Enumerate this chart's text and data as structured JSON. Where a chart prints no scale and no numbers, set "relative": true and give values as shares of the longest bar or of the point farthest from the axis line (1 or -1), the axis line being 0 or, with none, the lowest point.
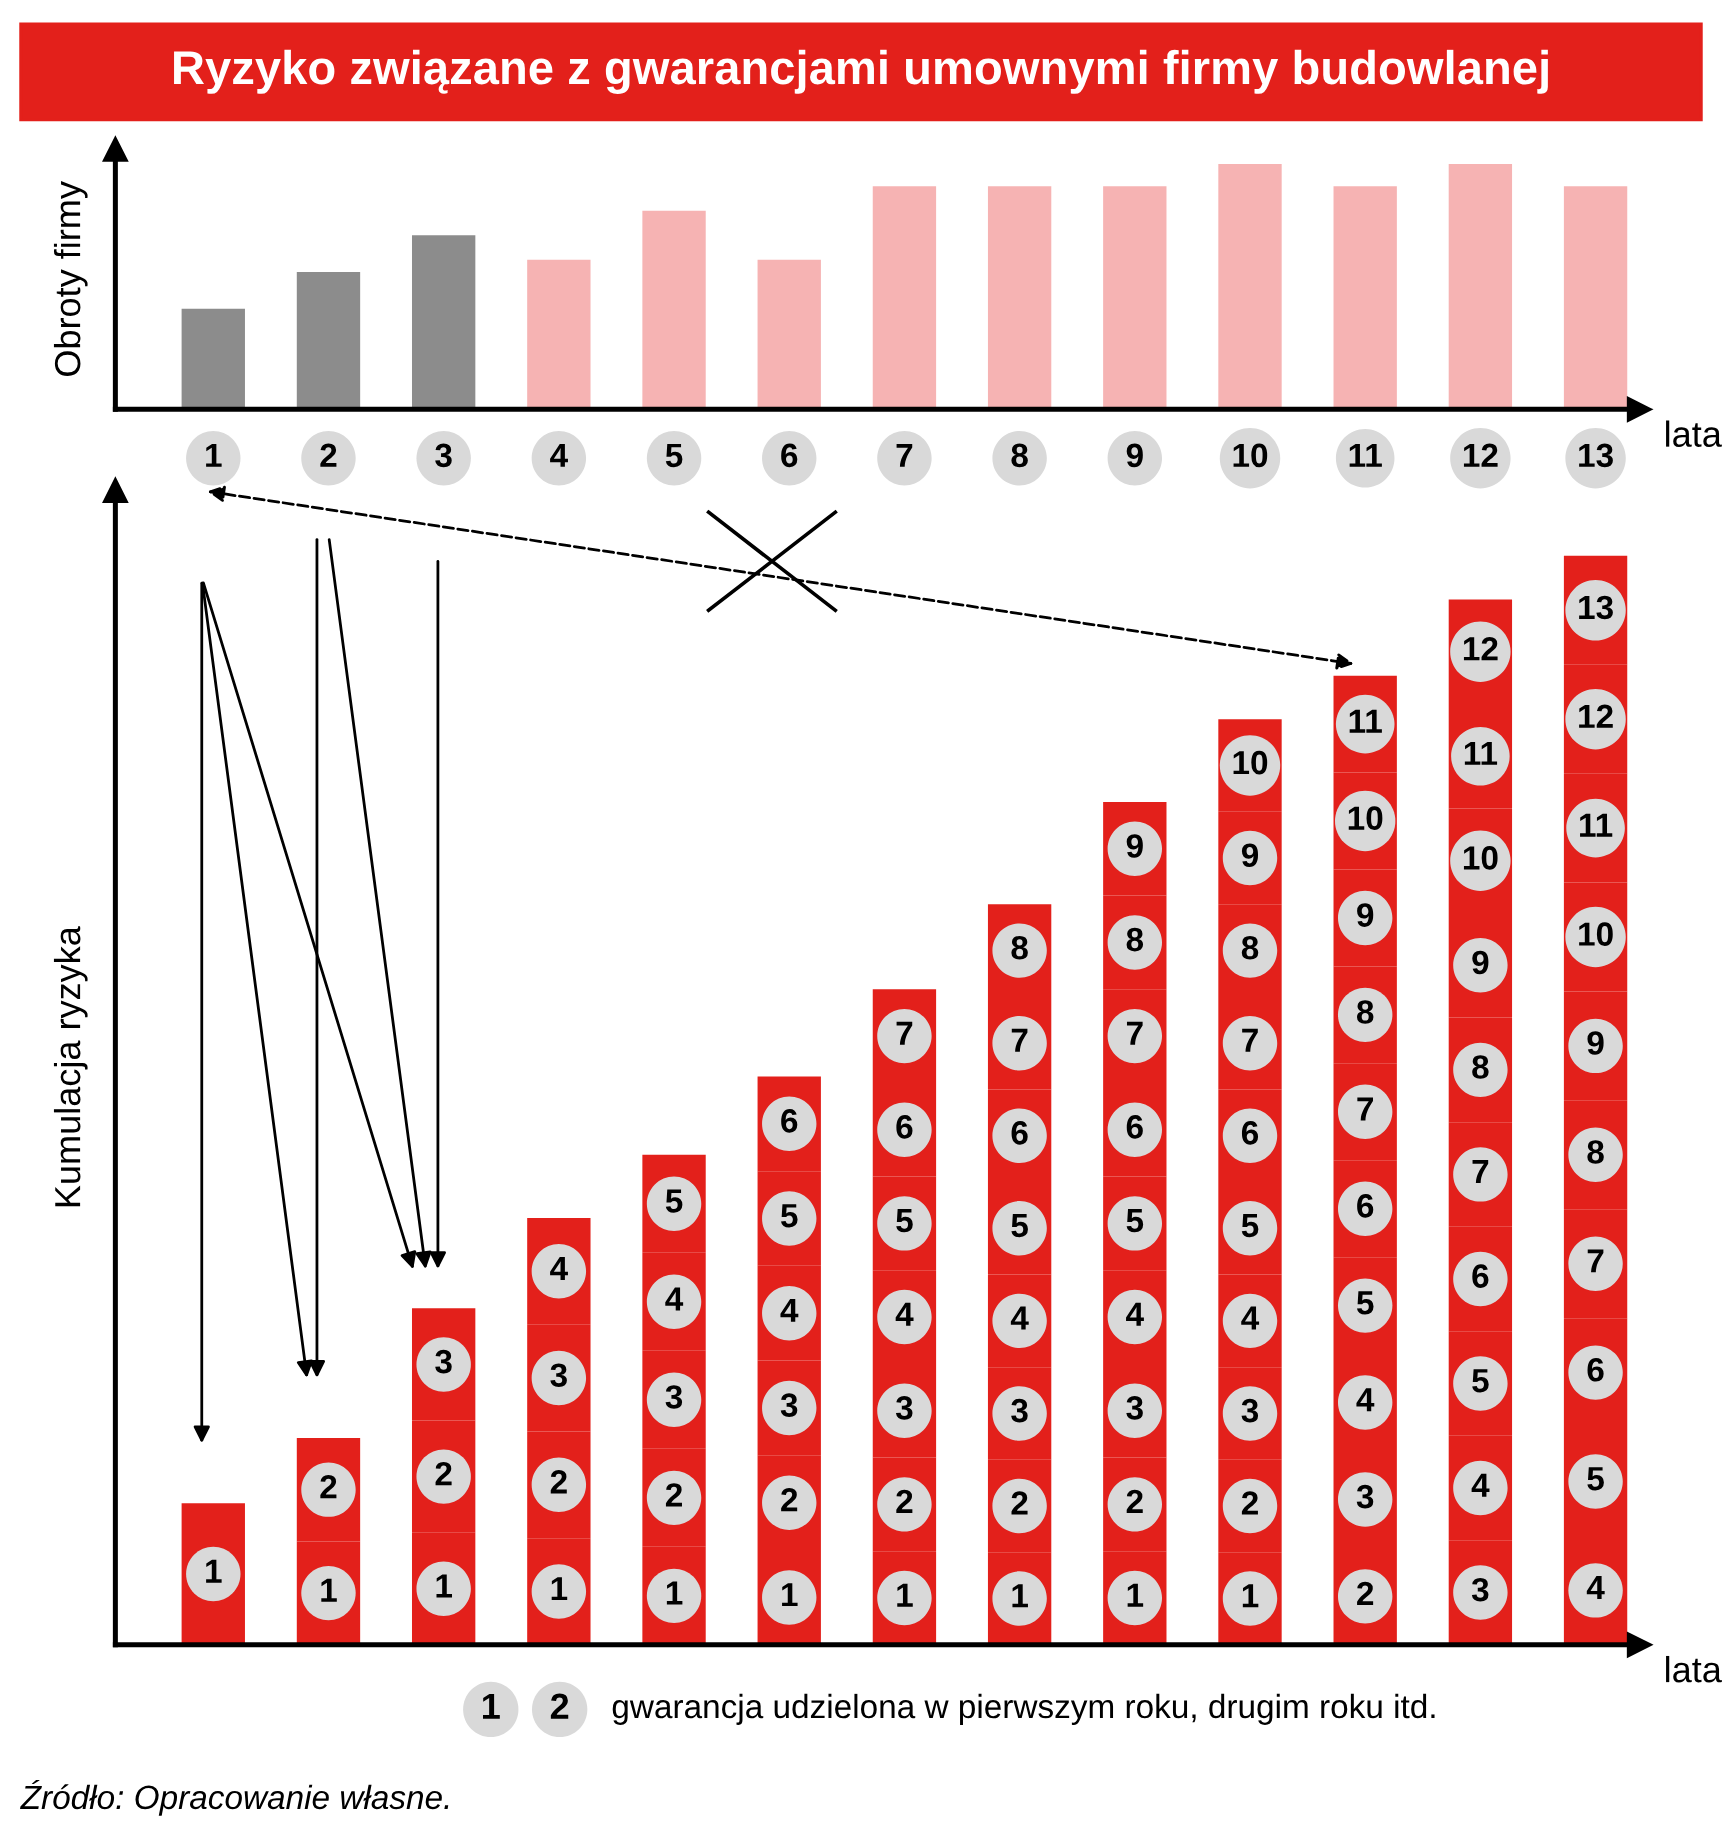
{
  "chart_data": [
    {
      "type": "bar",
      "title": "Ryzyko związane z gwarancjami umownymi firmy budowlanej",
      "ylabel": "Obroty firmy",
      "xlabel": "lata",
      "relative": true,
      "grid": false,
      "legend": false,
      "categories": [
        "1",
        "2",
        "3",
        "4",
        "5",
        "6",
        "7",
        "8",
        "9",
        "10",
        "11",
        "12",
        "13"
      ],
      "values": [
        0.41,
        0.56,
        0.71,
        0.61,
        0.81,
        0.61,
        0.91,
        0.91,
        0.91,
        1,
        0.91,
        1,
        0.91
      ],
      "colors": [
        "#8c8c8c",
        "#8c8c8c",
        "#8c8c8c",
        "#f6b3b3",
        "#f6b3b3",
        "#f6b3b3",
        "#f6b3b3",
        "#f6b3b3",
        "#f6b3b3",
        "#f6b3b3",
        "#f6b3b3",
        "#f6b3b3",
        "#f6b3b3"
      ]
    },
    {
      "type": "bar",
      "ylabel": "Kumulacja ryzyka",
      "xlabel": "lata",
      "relative": true,
      "stacked": true,
      "grid": false,
      "legend": false,
      "categories": [
        null,
        null,
        null,
        null,
        null,
        null,
        null,
        null,
        null,
        null,
        null,
        null,
        null
      ],
      "series": [
        {
          "name": "1",
          "color": "#e3201b",
          "values": [
            0.13,
            0.095,
            0.103,
            0.098,
            0.09,
            0.087,
            0.086,
            0.085,
            0.086,
            0.085,
            null,
            null,
            null
          ]
        },
        {
          "name": "2",
          "color": "#e3201b",
          "values": [
            null,
            0.095,
            0.103,
            0.098,
            0.09,
            0.087,
            0.086,
            0.085,
            0.086,
            0.085,
            0.089,
            null,
            null
          ]
        },
        {
          "name": "3",
          "color": "#e3201b",
          "values": [
            null,
            null,
            0.103,
            0.098,
            0.09,
            0.087,
            0.086,
            0.085,
            0.086,
            0.085,
            0.089,
            0.096,
            null
          ]
        },
        {
          "name": "4",
          "color": "#e3201b",
          "values": [
            null,
            null,
            null,
            0.098,
            0.09,
            0.087,
            0.086,
            0.085,
            0.086,
            0.085,
            0.089,
            0.096,
            0.1
          ]
        },
        {
          "name": "5",
          "color": "#e3201b",
          "values": [
            null,
            null,
            null,
            null,
            0.09,
            0.087,
            0.086,
            0.085,
            0.086,
            0.085,
            0.089,
            0.096,
            0.1
          ]
        },
        {
          "name": "6",
          "color": "#e3201b",
          "values": [
            null,
            null,
            null,
            null,
            null,
            0.087,
            0.086,
            0.085,
            0.086,
            0.085,
            0.089,
            0.096,
            0.1
          ]
        },
        {
          "name": "7",
          "color": "#e3201b",
          "values": [
            null,
            null,
            null,
            null,
            null,
            null,
            0.086,
            0.085,
            0.086,
            0.085,
            0.089,
            0.096,
            0.1
          ]
        },
        {
          "name": "8",
          "color": "#e3201b",
          "values": [
            null,
            null,
            null,
            null,
            null,
            null,
            null,
            0.085,
            0.086,
            0.085,
            0.089,
            0.096,
            0.1
          ]
        },
        {
          "name": "9",
          "color": "#e3201b",
          "values": [
            null,
            null,
            null,
            null,
            null,
            null,
            null,
            null,
            0.086,
            0.085,
            0.089,
            0.096,
            0.1
          ]
        },
        {
          "name": "10",
          "color": "#e3201b",
          "values": [
            null,
            null,
            null,
            null,
            null,
            null,
            null,
            null,
            null,
            0.085,
            0.089,
            0.096,
            0.1
          ]
        },
        {
          "name": "11",
          "color": "#e3201b",
          "values": [
            null,
            null,
            null,
            null,
            null,
            null,
            null,
            null,
            null,
            null,
            0.089,
            0.096,
            0.1
          ]
        },
        {
          "name": "12",
          "color": "#e3201b",
          "values": [
            null,
            null,
            null,
            null,
            null,
            null,
            null,
            null,
            null,
            null,
            null,
            0.096,
            0.1
          ]
        },
        {
          "name": "13",
          "color": "#e3201b",
          "values": [
            null,
            null,
            null,
            null,
            null,
            null,
            null,
            null,
            null,
            null,
            null,
            null,
            0.1
          ]
        }
      ],
      "annotations": [
        "1",
        "2",
        "gwarancja udzielona w pierwszym roku, drugim roku itd.",
        "Źródło: Opracowanie własne."
      ]
    }
  ]
}
